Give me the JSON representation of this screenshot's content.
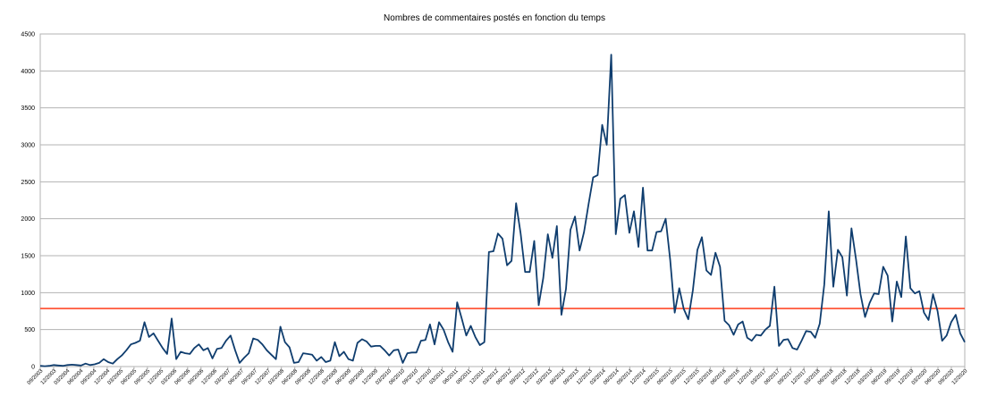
{
  "chart_data": {
    "type": "line",
    "title": "Nombres de commentaires postés en fonction du temps",
    "xlabel": "",
    "ylabel": "",
    "ylim": [
      0,
      4500
    ],
    "yticks": [
      0,
      500,
      1000,
      1500,
      2000,
      2500,
      3000,
      3500,
      4000,
      4500
    ],
    "grid": true,
    "legend": "none",
    "start": "09/2003",
    "tick_labels": [
      "09/2003",
      "12/2003",
      "03/2004",
      "06/2004",
      "09/2004",
      "12/2004",
      "03/2005",
      "06/2005",
      "09/2005",
      "12/2005",
      "03/2006",
      "06/2006",
      "09/2006",
      "12/2006",
      "03/2007",
      "06/2007",
      "09/2007",
      "12/2007",
      "03/2008",
      "06/2008",
      "09/2008",
      "12/2008",
      "03/2009",
      "06/2009",
      "09/2009",
      "12/2009",
      "03/2010",
      "06/2010",
      "09/2010",
      "12/2010",
      "03/2011",
      "06/2011",
      "09/2011",
      "12/2011",
      "03/2012",
      "06/2012",
      "09/2012",
      "12/2012",
      "03/2013",
      "06/2013",
      "09/2013",
      "12/2013",
      "03/2014",
      "06/2014",
      "09/2014",
      "12/2014",
      "03/2015",
      "06/2015",
      "09/2015",
      "12/2015",
      "03/2016",
      "06/2016",
      "09/2016",
      "12/2016",
      "03/2017",
      "06/2017",
      "09/2017",
      "12/2017",
      "03/2018",
      "06/2018",
      "09/2018",
      "12/2018",
      "03/2019",
      "06/2019",
      "09/2019",
      "12/2019",
      "03/2020",
      "06/2020",
      "09/2020",
      "12/2020"
    ],
    "series": [
      {
        "color": "#0f3d6e",
        "values": [
          10,
          5,
          10,
          20,
          15,
          10,
          20,
          25,
          20,
          15,
          40,
          20,
          30,
          50,
          100,
          60,
          40,
          100,
          150,
          220,
          300,
          320,
          350,
          600,
          400,
          450,
          350,
          250,
          170,
          650,
          100,
          200,
          180,
          170,
          250,
          300,
          220,
          250,
          110,
          240,
          250,
          350,
          420,
          220,
          50,
          120,
          180,
          380,
          360,
          300,
          220,
          160,
          100,
          540,
          330,
          260,
          50,
          60,
          180,
          170,
          160,
          80,
          130,
          60,
          80,
          330,
          140,
          200,
          100,
          80,
          320,
          370,
          340,
          270,
          280,
          280,
          220,
          150,
          220,
          230,
          50,
          180,
          190,
          190,
          350,
          360,
          570,
          300,
          600,
          500,
          330,
          200,
          870,
          650,
          420,
          550,
          400,
          290,
          330,
          1550,
          1560,
          1800,
          1730,
          1370,
          1430,
          2210,
          1800,
          1280,
          1280,
          1700,
          830,
          1200,
          1790,
          1470,
          1900,
          700,
          1050,
          1850,
          2030,
          1570,
          1820,
          2200,
          2560,
          2590,
          3270,
          3000,
          4220,
          1790,
          2270,
          2320,
          1810,
          2100,
          1620,
          2420,
          1570,
          1570,
          1820,
          1830,
          2000,
          1450,
          730,
          1060,
          780,
          640,
          1030,
          1580,
          1750,
          1300,
          1240,
          1540,
          1350,
          620,
          560,
          430,
          570,
          610,
          390,
          350,
          430,
          420,
          500,
          550,
          1080,
          280,
          360,
          370,
          250,
          230,
          350,
          480,
          470,
          390,
          580,
          1110,
          2100,
          1080,
          1580,
          1480,
          960,
          1870,
          1450,
          980,
          670,
          860,
          990,
          980,
          1350,
          1230,
          610,
          1150,
          940,
          1760,
          1060,
          990,
          1020,
          730,
          630,
          980,
          750,
          350,
          420,
          600,
          700,
          450,
          330
        ]
      },
      {
        "color": "#ff4a2a",
        "values": [
          785,
          785
        ]
      }
    ]
  }
}
